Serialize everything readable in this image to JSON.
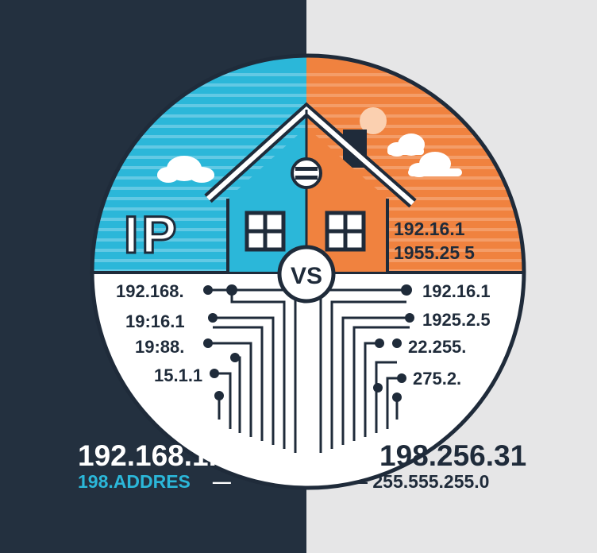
{
  "colors": {
    "left_bg": "#23303f",
    "right_bg": "#e6e6e7",
    "blue": "#2bb7d9",
    "blue_stripe": "#8fd9ec",
    "orange": "#f0823f",
    "orange_stripe": "#f7b48a",
    "navy": "#1f2b3a",
    "white": "#ffffff"
  },
  "left_panel": {
    "big_label": "IP",
    "addresses": [
      "192.168.",
      "19:16.1",
      "19:88.",
      "15.1.1"
    ],
    "bottom_main": "192.168.1.1",
    "bottom_sub": "198.ADDRES",
    "bottom_sub_suffix": "—"
  },
  "right_panel": {
    "house_text": [
      "192.16.1",
      "1955.25"
    ],
    "house_text_suffix": "5",
    "addresses": [
      "192.16.1",
      "1925.2.5",
      "22.255.",
      "275.2."
    ],
    "bottom_main": "198.256.31",
    "bottom_sub": "— 255.555.255.0"
  },
  "center": {
    "vs_label": "VS",
    "icons": [
      "house-left-icon",
      "house-right-icon",
      "vent-icon",
      "window-icon",
      "cloud-icon",
      "sun-icon"
    ]
  }
}
